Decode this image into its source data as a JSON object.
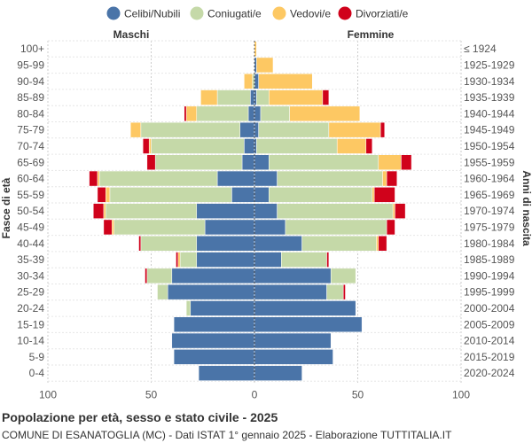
{
  "chart_data": {
    "type": "bar",
    "orientation": "horizontal-population-pyramid",
    "title": "Popolazione per età, sesso e stato civile - 2025",
    "subtitle": "COMUNE DI ESANATOGLIA (MC) - Dati ISTAT 1° gennaio 2025 - Elaborazione TUTTITALIA.IT",
    "left_label": "Maschi",
    "right_label": "Femmine",
    "ylabel_left": "Fasce di età",
    "ylabel_right": "Anni di nascita",
    "xlim": [
      -100,
      100
    ],
    "x_ticks": [
      -100,
      -50,
      0,
      50,
      100
    ],
    "x_tick_labels": [
      "100",
      "50",
      "0",
      "50",
      "100"
    ],
    "grid": true,
    "legend_position": "top",
    "age_groups": [
      "100+",
      "95-99",
      "90-94",
      "85-89",
      "80-84",
      "75-79",
      "70-74",
      "65-69",
      "60-64",
      "55-59",
      "50-54",
      "45-49",
      "40-44",
      "35-39",
      "30-34",
      "25-29",
      "20-24",
      "15-19",
      "10-14",
      "5-9",
      "0-4"
    ],
    "birth_years": [
      "≤ 1924",
      "1925-1929",
      "1930-1934",
      "1935-1939",
      "1940-1944",
      "1945-1949",
      "1950-1954",
      "1955-1959",
      "1960-1964",
      "1965-1969",
      "1970-1974",
      "1975-1979",
      "1980-1984",
      "1985-1989",
      "1990-1994",
      "1995-1999",
      "2000-2004",
      "2005-2009",
      "2010-2014",
      "2015-2019",
      "2020-2024"
    ],
    "series": [
      {
        "name": "Celibi/Nubili",
        "color": "#4a74a8",
        "male": [
          0,
          0,
          0,
          2,
          3,
          7,
          5,
          6,
          18,
          11,
          28,
          24,
          28,
          28,
          40,
          42,
          31,
          39,
          40,
          39,
          27
        ],
        "female": [
          0,
          1,
          2,
          1,
          3,
          2,
          1,
          7,
          11,
          7,
          11,
          15,
          23,
          13,
          37,
          35,
          49,
          52,
          37,
          38,
          23
        ]
      },
      {
        "name": "Coniugati/e",
        "color": "#c5d9a8",
        "male": [
          0,
          0,
          1,
          16,
          25,
          48,
          45,
          42,
          57,
          59,
          44,
          44,
          27,
          8,
          12,
          5,
          2,
          0,
          0,
          0,
          0
        ],
        "female": [
          0,
          0,
          0,
          6,
          14,
          34,
          39,
          53,
          51,
          50,
          56,
          49,
          36,
          22,
          12,
          8,
          0,
          0,
          0,
          0,
          0
        ]
      },
      {
        "name": "Vedovi/e",
        "color": "#fdc863",
        "male": [
          0,
          0,
          4,
          8,
          5,
          5,
          1,
          0,
          1,
          2,
          1,
          1,
          0,
          1,
          0,
          0,
          0,
          0,
          0,
          0,
          0
        ],
        "female": [
          1,
          8,
          26,
          26,
          34,
          25,
          14,
          11,
          2,
          1,
          1,
          0,
          1,
          0,
          0,
          0,
          0,
          0,
          0,
          0,
          0
        ]
      },
      {
        "name": "Divorziati/e",
        "color": "#d0021b",
        "male": [
          0,
          0,
          0,
          0,
          1,
          0,
          3,
          4,
          4,
          4,
          5,
          4,
          1,
          1,
          1,
          0,
          0,
          0,
          0,
          0,
          0
        ],
        "female": [
          0,
          0,
          0,
          3,
          0,
          2,
          3,
          5,
          5,
          10,
          5,
          4,
          4,
          1,
          0,
          1,
          0,
          0,
          0,
          0,
          0
        ]
      }
    ]
  }
}
